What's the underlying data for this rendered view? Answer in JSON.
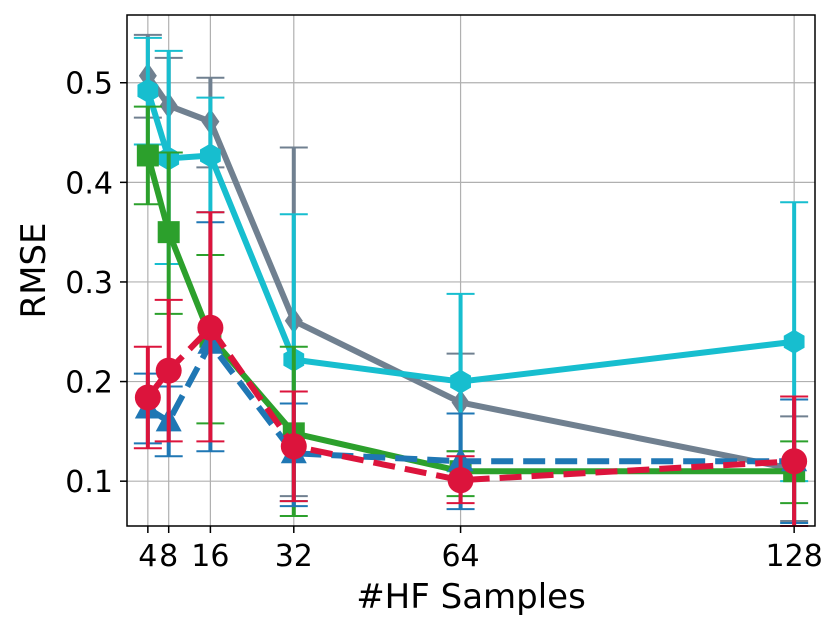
{
  "chart_data": {
    "type": "line",
    "xlabel": "#HF Samples",
    "ylabel": "RMSE",
    "xlim": [
      0,
      132
    ],
    "ylim": [
      0.055,
      0.568
    ],
    "grid": true,
    "xticks": [
      4,
      8,
      16,
      32,
      64,
      128
    ],
    "xtick_labels": [
      "4",
      "8",
      "16",
      "32",
      "64",
      "128"
    ],
    "yticks": [
      0.1,
      0.2,
      0.3,
      0.4,
      0.5
    ],
    "ytick_labels": [
      "0.1",
      "0.2",
      "0.3",
      "0.4",
      "0.5"
    ],
    "x": [
      4,
      8,
      16,
      32,
      64,
      128
    ],
    "series": [
      {
        "color": "#708090",
        "marker": "diamond",
        "dash": "solid",
        "values": [
          0.507,
          0.477,
          0.461,
          0.261,
          0.179,
          0.112
        ],
        "err_low": [
          0.465,
          0.43,
          0.415,
          0.085,
          0.13,
          0.06
        ],
        "err_high": [
          0.548,
          0.525,
          0.505,
          0.435,
          0.228,
          0.165
        ]
      },
      {
        "color": "#17becf",
        "marker": "hexagon",
        "dash": "solid",
        "values": [
          0.492,
          0.424,
          0.427,
          0.222,
          0.2,
          0.24
        ],
        "err_low": [
          0.438,
          0.318,
          0.37,
          0.08,
          0.11,
          0.1
        ],
        "err_high": [
          0.545,
          0.532,
          0.485,
          0.368,
          0.288,
          0.38
        ]
      },
      {
        "color": "#2ca02c",
        "marker": "square",
        "dash": "solid",
        "values": [
          0.427,
          0.35,
          0.245,
          0.148,
          0.11,
          0.11
        ],
        "err_low": [
          0.378,
          0.268,
          0.158,
          0.065,
          0.085,
          0.078
        ],
        "err_high": [
          0.476,
          0.43,
          0.327,
          0.235,
          0.13,
          0.14
        ]
      },
      {
        "color": "#1f77b4",
        "marker": "triangle",
        "dash": "dashed",
        "values": [
          0.173,
          0.16,
          0.238,
          0.128,
          0.12,
          0.12
        ],
        "err_low": [
          0.138,
          0.125,
          0.13,
          0.075,
          0.072,
          0.058
        ],
        "err_high": [
          0.208,
          0.195,
          0.36,
          0.178,
          0.168,
          0.182
        ]
      },
      {
        "color": "#dc143c",
        "marker": "circle",
        "dash": "dashed",
        "values": [
          0.184,
          0.211,
          0.254,
          0.135,
          0.101,
          0.12
        ],
        "err_low": [
          0.133,
          0.14,
          0.14,
          0.08,
          0.078,
          0.055
        ],
        "err_high": [
          0.235,
          0.282,
          0.37,
          0.19,
          0.125,
          0.185
        ]
      }
    ]
  }
}
